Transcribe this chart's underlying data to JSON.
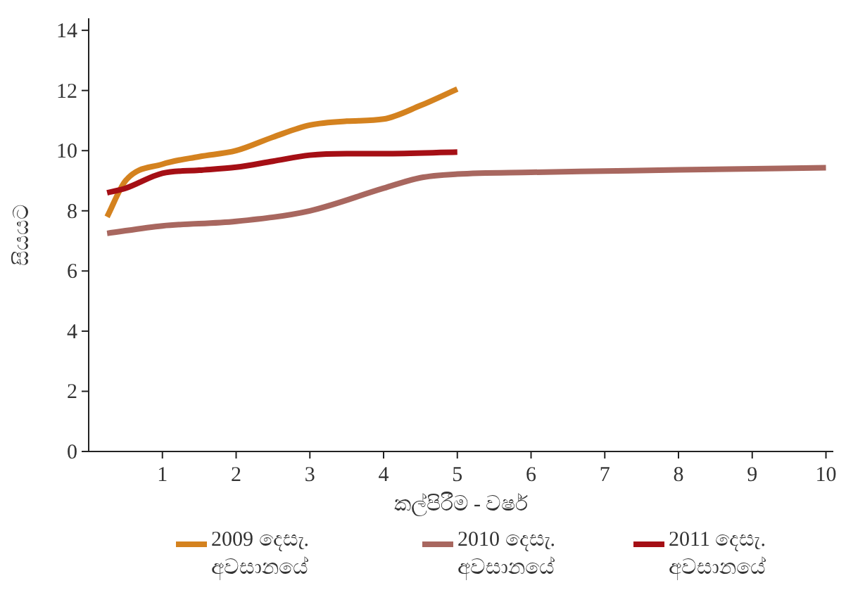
{
  "chart_data": {
    "type": "line",
    "xlabel": "කල්පිරීම - වර්ෂ",
    "ylabel": "සියයට",
    "xlim": [
      0,
      10.1
    ],
    "ylim": [
      0,
      14.4
    ],
    "xticks": [
      1,
      2,
      3,
      4,
      5,
      6,
      7,
      8,
      9,
      10
    ],
    "yticks": [
      0,
      2,
      4,
      6,
      8,
      10,
      12,
      14
    ],
    "grid": false,
    "legend": "bottom",
    "marker": "none",
    "line_style": "solid",
    "series": [
      {
        "name": "2009 දෙසැ. අවසානයේ",
        "color": "#d4821f",
        "x": [
          0.25,
          0.5,
          1,
          1.5,
          2,
          2.5,
          3,
          3.5,
          4,
          4.5,
          5
        ],
        "values": [
          7.8,
          9.0,
          9.55,
          9.8,
          10.0,
          10.45,
          10.85,
          10.98,
          11.05,
          11.5,
          12.05
        ]
      },
      {
        "name": "2010 දෙසැ. අවසානයේ",
        "color": "#a8675f",
        "x": [
          0.25,
          1,
          2,
          3,
          4,
          4.5,
          5,
          6,
          7,
          8,
          10
        ],
        "values": [
          7.25,
          7.5,
          7.65,
          8.0,
          8.75,
          9.1,
          9.22,
          9.28,
          9.32,
          9.36,
          9.43
        ]
      },
      {
        "name": "2011 දෙසැ. අවසානයේ",
        "color": "#a50f15",
        "x": [
          0.25,
          0.5,
          1,
          1.5,
          2,
          2.5,
          3,
          3.5,
          4,
          5
        ],
        "values": [
          8.6,
          8.75,
          9.25,
          9.35,
          9.45,
          9.65,
          9.85,
          9.9,
          9.9,
          9.95
        ]
      }
    ]
  }
}
